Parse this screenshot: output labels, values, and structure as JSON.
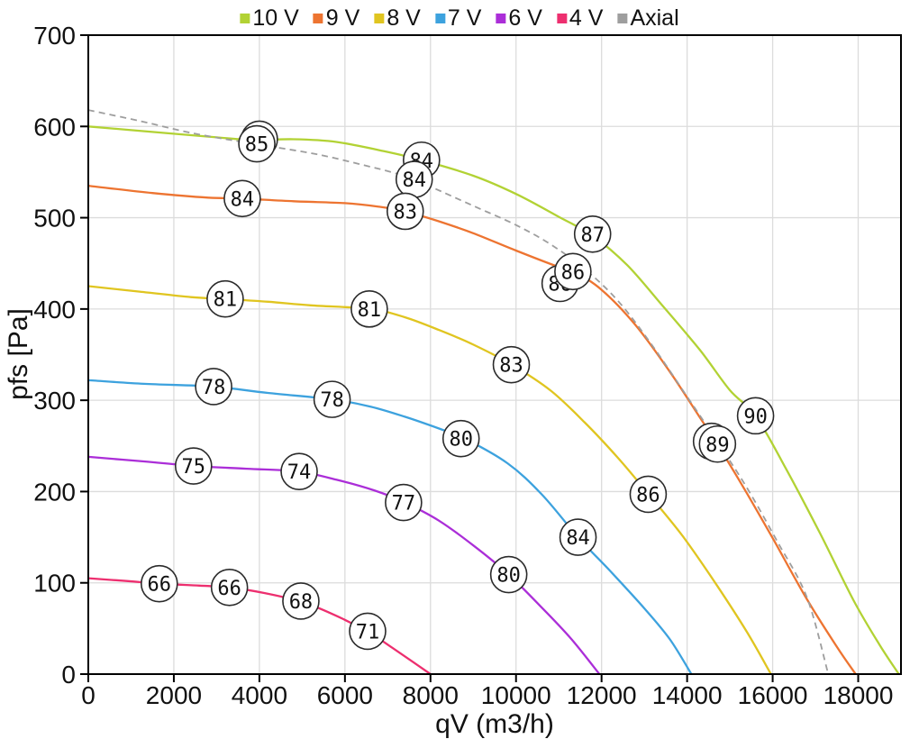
{
  "page": {
    "background": "#ffffff"
  },
  "legend": {
    "position": "top-center"
  },
  "chart_data": {
    "type": "line",
    "title": "",
    "xlabel": "qV (m3/h)",
    "ylabel": "pfs [Pa]",
    "xlim": [
      0,
      19000
    ],
    "ylim": [
      0,
      700
    ],
    "x_ticks": [
      0,
      2000,
      4000,
      6000,
      8000,
      10000,
      12000,
      14000,
      16000,
      18000
    ],
    "y_ticks": [
      0,
      100,
      200,
      300,
      400,
      500,
      600,
      700
    ],
    "grid": true,
    "colors": {
      "grid": "#dcdcdc",
      "axis": "#000000",
      "text": "#1a1a1a"
    },
    "series": [
      {
        "name": "10 V",
        "color": "#b2d234",
        "dash": false,
        "label_layer": 1,
        "points": [
          [
            0,
            600
          ],
          [
            1500,
            594
          ],
          [
            3000,
            588
          ],
          [
            3900,
            585
          ],
          [
            4800,
            586
          ],
          [
            5800,
            583
          ],
          [
            7000,
            572
          ],
          [
            7800,
            563
          ],
          [
            9000,
            546
          ],
          [
            10000,
            526
          ],
          [
            11000,
            501
          ],
          [
            11800,
            480
          ],
          [
            12600,
            448
          ],
          [
            13400,
            405
          ],
          [
            14300,
            355
          ],
          [
            15000,
            311
          ],
          [
            15600,
            283
          ],
          [
            16300,
            226
          ],
          [
            17100,
            155
          ],
          [
            17900,
            80
          ],
          [
            18500,
            32
          ],
          [
            18950,
            0
          ]
        ],
        "labels": [
          {
            "text": "85",
            "q": 4000,
            "p": 586,
            "covered": true
          },
          {
            "text": "84",
            "q": 7790,
            "p": 563
          },
          {
            "text": "87",
            "q": 11790,
            "p": 482
          },
          {
            "text": "90",
            "q": 15600,
            "p": 283
          }
        ]
      },
      {
        "name": "9 V",
        "color": "#ed7431",
        "dash": false,
        "label_layer": 3,
        "points": [
          [
            0,
            535
          ],
          [
            1500,
            527
          ],
          [
            2800,
            522
          ],
          [
            3600,
            521
          ],
          [
            4800,
            518
          ],
          [
            6000,
            516
          ],
          [
            6800,
            512
          ],
          [
            7400,
            507
          ],
          [
            8200,
            496
          ],
          [
            9000,
            483
          ],
          [
            10000,
            464
          ],
          [
            11000,
            446
          ],
          [
            11350,
            441
          ],
          [
            12000,
            421
          ],
          [
            12800,
            382
          ],
          [
            13600,
            331
          ],
          [
            14300,
            281
          ],
          [
            14700,
            252
          ],
          [
            15300,
            206
          ],
          [
            16000,
            149
          ],
          [
            16800,
            82
          ],
          [
            17500,
            30
          ],
          [
            17940,
            0
          ]
        ],
        "labels": [
          {
            "text": "84",
            "q": 3600,
            "p": 521
          },
          {
            "text": "83",
            "q": 7410,
            "p": 507
          },
          {
            "text": "86",
            "q": 11330,
            "p": 441
          },
          {
            "text": "89",
            "q": 14710,
            "p": 252
          }
        ]
      },
      {
        "name": "8 V",
        "color": "#e0c520",
        "dash": false,
        "label_layer": 4,
        "points": [
          [
            0,
            425
          ],
          [
            1200,
            419
          ],
          [
            2400,
            413
          ],
          [
            3200,
            411
          ],
          [
            4200,
            408
          ],
          [
            5200,
            404
          ],
          [
            6600,
            400
          ],
          [
            7400,
            391
          ],
          [
            8200,
            377
          ],
          [
            9000,
            361
          ],
          [
            9900,
            339
          ],
          [
            10800,
            311
          ],
          [
            11600,
            276
          ],
          [
            12400,
            236
          ],
          [
            13100,
            197
          ],
          [
            13900,
            151
          ],
          [
            14700,
            97
          ],
          [
            15400,
            46
          ],
          [
            15960,
            0
          ]
        ],
        "labels": [
          {
            "text": "81",
            "q": 3200,
            "p": 411
          },
          {
            "text": "81",
            "q": 6570,
            "p": 400
          },
          {
            "text": "83",
            "q": 9890,
            "p": 339
          },
          {
            "text": "86",
            "q": 13090,
            "p": 197
          }
        ]
      },
      {
        "name": "7 V",
        "color": "#3da2de",
        "dash": false,
        "label_layer": 5,
        "points": [
          [
            0,
            322
          ],
          [
            1300,
            318
          ],
          [
            2900,
            315
          ],
          [
            4200,
            308
          ],
          [
            5700,
            301
          ],
          [
            6600,
            293
          ],
          [
            7400,
            282
          ],
          [
            8200,
            269
          ],
          [
            8800,
            258
          ],
          [
            9800,
            231
          ],
          [
            10600,
            197
          ],
          [
            11450,
            150
          ],
          [
            12200,
            113
          ],
          [
            13000,
            72
          ],
          [
            13600,
            38
          ],
          [
            14100,
            0
          ]
        ],
        "labels": [
          {
            "text": "78",
            "q": 2930,
            "p": 315
          },
          {
            "text": "78",
            "q": 5700,
            "p": 301
          },
          {
            "text": "80",
            "q": 8715,
            "p": 258
          },
          {
            "text": "84",
            "q": 11450,
            "p": 150
          }
        ]
      },
      {
        "name": "6 V",
        "color": "#ab2ed8",
        "dash": false,
        "label_layer": 6,
        "points": [
          [
            0,
            238
          ],
          [
            1300,
            233
          ],
          [
            2500,
            228
          ],
          [
            3700,
            225
          ],
          [
            4900,
            222
          ],
          [
            5800,
            213
          ],
          [
            6700,
            201
          ],
          [
            7400,
            188
          ],
          [
            8200,
            168
          ],
          [
            9000,
            141
          ],
          [
            9830,
            109
          ],
          [
            10600,
            73
          ],
          [
            11300,
            38
          ],
          [
            11950,
            0
          ]
        ],
        "labels": [
          {
            "text": "75",
            "q": 2460,
            "p": 228
          },
          {
            "text": "74",
            "q": 4930,
            "p": 222
          },
          {
            "text": "77",
            "q": 7370,
            "p": 188
          },
          {
            "text": "80",
            "q": 9830,
            "p": 109
          }
        ]
      },
      {
        "name": "4 V",
        "color": "#ed2f6f",
        "dash": false,
        "label_layer": 7,
        "points": [
          [
            0,
            105
          ],
          [
            900,
            102
          ],
          [
            1700,
            99
          ],
          [
            2600,
            97
          ],
          [
            3300,
            95
          ],
          [
            4100,
            89
          ],
          [
            5000,
            79
          ],
          [
            5700,
            66
          ],
          [
            6550,
            46
          ],
          [
            7100,
            29
          ],
          [
            7600,
            13
          ],
          [
            8000,
            0
          ]
        ],
        "labels": [
          {
            "text": "66",
            "q": 1660,
            "p": 99
          },
          {
            "text": "66",
            "q": 3300,
            "p": 95
          },
          {
            "text": "68",
            "q": 4970,
            "p": 80
          },
          {
            "text": "71",
            "q": 6530,
            "p": 47
          }
        ]
      },
      {
        "name": "Axial",
        "color": "#9e9e9e",
        "dash": true,
        "label_layer": 2,
        "points": [
          [
            0,
            618
          ],
          [
            1200,
            606
          ],
          [
            2400,
            593
          ],
          [
            3600,
            583
          ],
          [
            4400,
            577
          ],
          [
            5400,
            569
          ],
          [
            6400,
            558
          ],
          [
            7300,
            547
          ],
          [
            8000,
            534
          ],
          [
            9000,
            513
          ],
          [
            10000,
            492
          ],
          [
            10800,
            471
          ],
          [
            11600,
            444
          ],
          [
            12400,
            408
          ],
          [
            13200,
            359
          ],
          [
            14000,
            304
          ],
          [
            14700,
            255
          ],
          [
            15400,
            204
          ],
          [
            16100,
            146
          ],
          [
            16800,
            84
          ],
          [
            17300,
            0
          ]
        ],
        "labels": [
          {
            "text": "85",
            "q": 3940,
            "p": 581
          },
          {
            "text": "84",
            "q": 7620,
            "p": 542
          },
          {
            "text": "86",
            "q": 11030,
            "p": 428,
            "covered": true
          },
          {
            "text": "89",
            "q": 14570,
            "p": 255,
            "covered": true
          }
        ]
      }
    ]
  }
}
